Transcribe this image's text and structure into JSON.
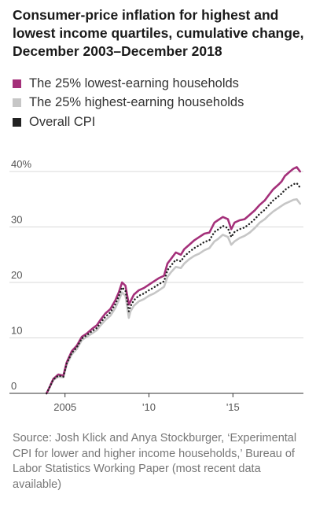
{
  "title": "Consumer-price inflation for highest and lowest income quartiles, cumulative change, December 2003–December 2018",
  "legend": [
    {
      "label": "The 25% lowest-earning households",
      "color": "#a4307a"
    },
    {
      "label": "The 25% highest-earning households",
      "color": "#c6c6c6"
    },
    {
      "label": "Overall CPI",
      "color": "#222222"
    }
  ],
  "source": "Source: Josh Klick and Anya Stockburger, ‘Experimental CPI for lower and higher income households,’ Bureau of Labor Statistics Working Paper (most recent data available)",
  "chart_data": {
    "type": "line",
    "title": "Consumer-price inflation for highest and lowest income quartiles, cumulative change, December 2003–December 2018",
    "xlabel": "",
    "ylabel": "",
    "xlim": [
      2003.0,
      2019.2
    ],
    "ylim": [
      0,
      40
    ],
    "y_ticks": [
      0,
      10,
      20,
      30,
      40
    ],
    "y_tick_labels": [
      "0",
      "10",
      "20",
      "30",
      "40%"
    ],
    "x_ticks": [
      2005,
      2010,
      2015
    ],
    "x_tick_labels": [
      "2005",
      "'10",
      "'15"
    ],
    "grid": true,
    "legend_position": "top",
    "x": [
      2003.9,
      2004.0,
      2004.3,
      2004.6,
      2004.9,
      2005.1,
      2005.4,
      2005.7,
      2006.0,
      2006.3,
      2006.6,
      2006.9,
      2007.1,
      2007.4,
      2007.7,
      2008.0,
      2008.2,
      2008.4,
      2008.6,
      2008.8,
      2008.9,
      2009.1,
      2009.4,
      2009.7,
      2010.0,
      2010.3,
      2010.6,
      2010.9,
      2011.1,
      2011.3,
      2011.6,
      2011.9,
      2012.1,
      2012.4,
      2012.7,
      2013.0,
      2013.3,
      2013.6,
      2013.9,
      2014.1,
      2014.4,
      2014.7,
      2014.9,
      2015.1,
      2015.4,
      2015.7,
      2016.0,
      2016.3,
      2016.6,
      2016.9,
      2017.1,
      2017.4,
      2017.7,
      2017.9,
      2018.1,
      2018.4,
      2018.6,
      2018.8,
      2019.0
    ],
    "series": [
      {
        "name": "The 25% lowest-earning households",
        "color": "#a4307a",
        "values": [
          0.0,
          0.6,
          2.6,
          3.4,
          3.2,
          5.6,
          7.6,
          8.6,
          10.2,
          10.8,
          11.6,
          12.3,
          13.2,
          14.4,
          15.2,
          16.8,
          18.2,
          20.0,
          19.4,
          16.0,
          16.6,
          17.8,
          18.6,
          19.0,
          19.6,
          20.2,
          20.8,
          21.2,
          23.4,
          24.2,
          25.4,
          25.0,
          26.0,
          26.8,
          27.6,
          28.2,
          28.8,
          29.0,
          30.8,
          31.2,
          31.8,
          31.4,
          29.6,
          30.8,
          31.2,
          31.4,
          32.2,
          33.0,
          34.0,
          34.8,
          35.6,
          36.8,
          37.6,
          38.2,
          39.2,
          40.0,
          40.5,
          40.8,
          40.0
        ]
      },
      {
        "name": "The 25% highest-earning households",
        "color": "#c6c6c6",
        "values": [
          0.0,
          0.6,
          2.4,
          3.0,
          2.9,
          5.2,
          7.0,
          8.0,
          9.6,
          10.2,
          10.8,
          11.4,
          12.2,
          13.2,
          14.0,
          15.4,
          16.8,
          18.2,
          17.6,
          13.6,
          14.8,
          15.8,
          16.6,
          17.0,
          17.6,
          18.0,
          18.6,
          19.2,
          21.0,
          21.8,
          22.8,
          22.6,
          23.4,
          24.2,
          24.8,
          25.2,
          25.8,
          26.2,
          27.4,
          27.8,
          28.6,
          28.2,
          26.8,
          27.4,
          28.0,
          28.4,
          29.0,
          29.8,
          30.8,
          31.4,
          32.0,
          32.8,
          33.4,
          33.8,
          34.2,
          34.6,
          34.9,
          35.0,
          34.2
        ]
      },
      {
        "name": "Overall CPI",
        "color": "#222222",
        "values": [
          0.0,
          0.6,
          2.5,
          3.2,
          3.0,
          5.4,
          7.3,
          8.3,
          9.9,
          10.5,
          11.2,
          11.8,
          12.7,
          13.8,
          14.6,
          16.1,
          17.5,
          19.1,
          18.5,
          14.8,
          15.7,
          16.8,
          17.6,
          18.0,
          18.6,
          19.1,
          19.7,
          20.2,
          22.2,
          23.0,
          24.1,
          23.8,
          24.7,
          25.5,
          26.2,
          26.7,
          27.3,
          27.6,
          29.1,
          29.5,
          30.2,
          29.8,
          28.2,
          29.1,
          29.6,
          29.9,
          30.6,
          31.4,
          32.4,
          33.1,
          33.8,
          34.8,
          35.5,
          36.0,
          36.7,
          37.3,
          37.7,
          37.9,
          37.1
        ]
      }
    ]
  }
}
